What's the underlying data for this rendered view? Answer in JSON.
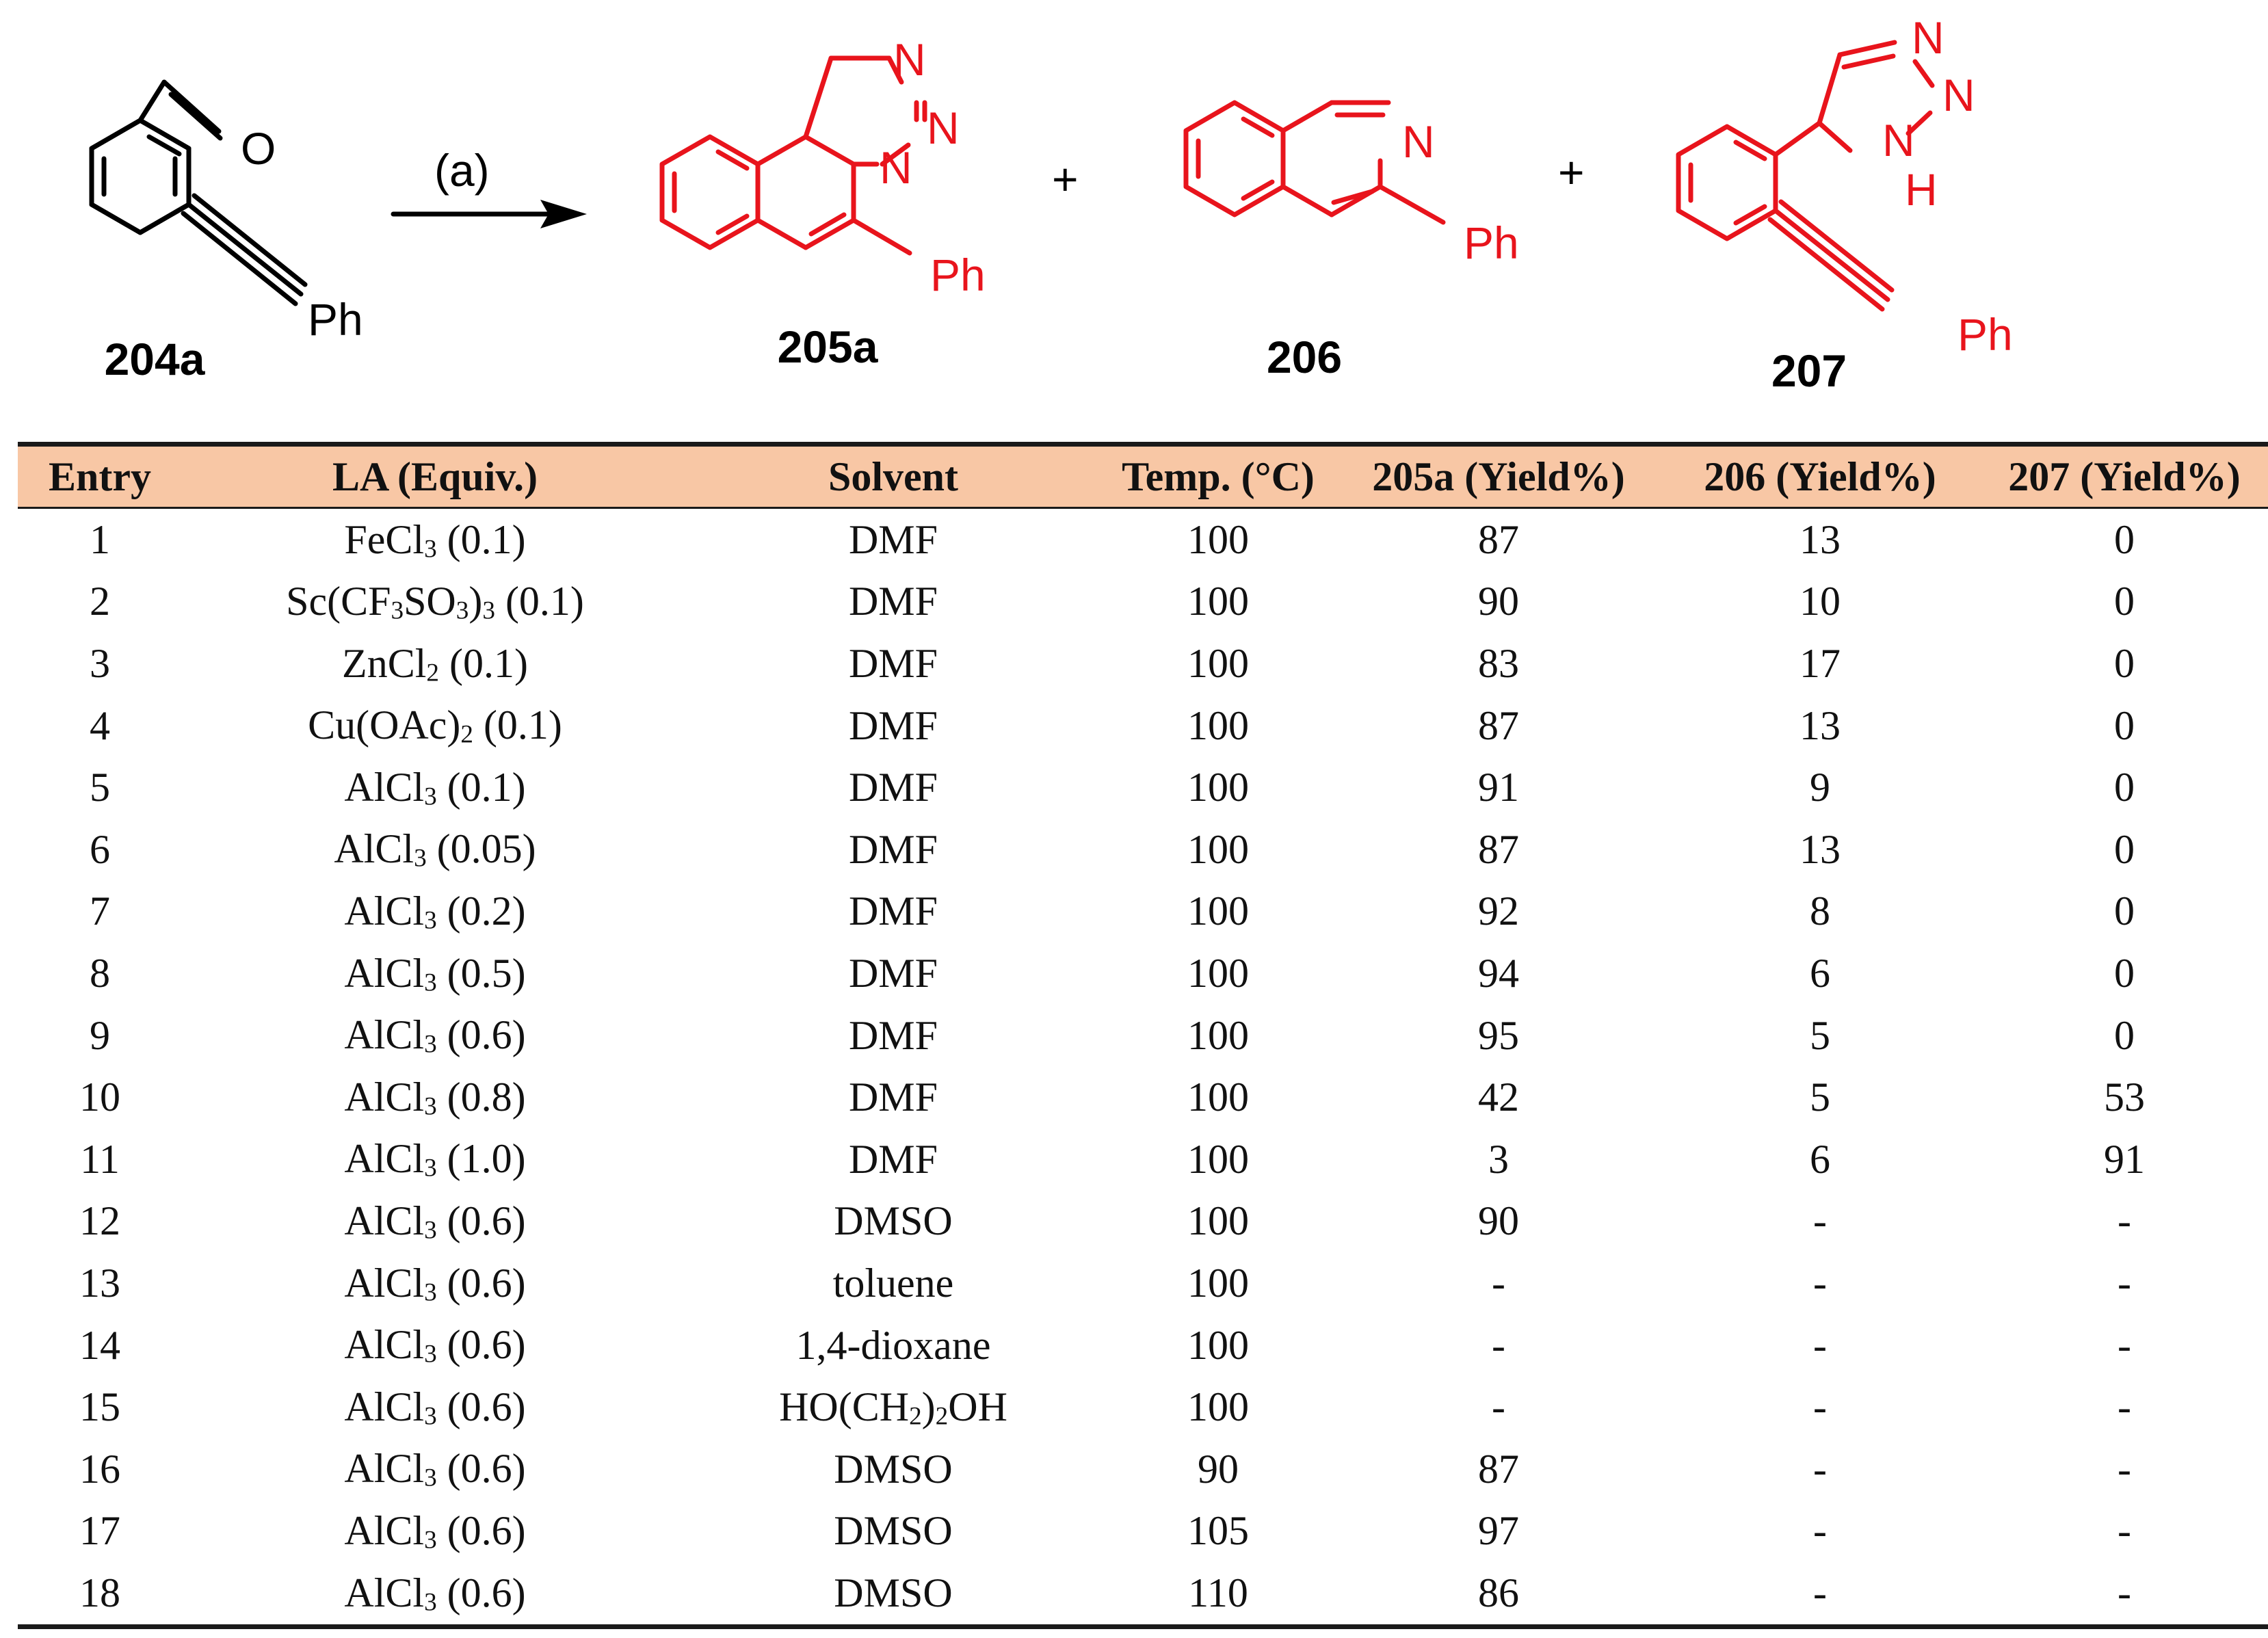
{
  "scheme": {
    "reagent_label": "(a)",
    "plus_sign": "+",
    "compounds": [
      {
        "label": "204a",
        "substituent": "Ph",
        "atoms": [
          "O"
        ]
      },
      {
        "label": "205a",
        "substituent": "Ph",
        "atoms": [
          "N",
          "N",
          "N"
        ]
      },
      {
        "label": "206",
        "substituent": "Ph",
        "atoms": [
          "N"
        ]
      },
      {
        "label": "207",
        "substituent": "Ph",
        "atoms": [
          "N",
          "N",
          "N",
          "H"
        ]
      }
    ],
    "colors": {
      "reactant": "#000000",
      "product": "#e8141c"
    }
  },
  "table": {
    "header_color": "#f8c7a5",
    "headers": [
      "Entry",
      "LA (Equiv.)",
      "Solvent",
      "Temp. (°C)",
      "205a (Yield%)",
      "206 (Yield%)",
      "207 (Yield%)"
    ],
    "rows": [
      {
        "entry": "1",
        "la": "FeCl3 (0.1)",
        "solvent": "DMF",
        "temp": "100",
        "y205a": "87",
        "y206": "13",
        "y207": "0"
      },
      {
        "entry": "2",
        "la": "Sc(CF3SO3)3 (0.1)",
        "solvent": "DMF",
        "temp": "100",
        "y205a": "90",
        "y206": "10",
        "y207": "0"
      },
      {
        "entry": "3",
        "la": "ZnCl2 (0.1)",
        "solvent": "DMF",
        "temp": "100",
        "y205a": "83",
        "y206": "17",
        "y207": "0"
      },
      {
        "entry": "4",
        "la": "Cu(OAc)2 (0.1)",
        "solvent": "DMF",
        "temp": "100",
        "y205a": "87",
        "y206": "13",
        "y207": "0"
      },
      {
        "entry": "5",
        "la": "AlCl3 (0.1)",
        "solvent": "DMF",
        "temp": "100",
        "y205a": "91",
        "y206": "9",
        "y207": "0"
      },
      {
        "entry": "6",
        "la": "AlCl3 (0.05)",
        "solvent": "DMF",
        "temp": "100",
        "y205a": "87",
        "y206": "13",
        "y207": "0"
      },
      {
        "entry": "7",
        "la": "AlCl3 (0.2)",
        "solvent": "DMF",
        "temp": "100",
        "y205a": "92",
        "y206": "8",
        "y207": "0"
      },
      {
        "entry": "8",
        "la": "AlCl3 (0.5)",
        "solvent": "DMF",
        "temp": "100",
        "y205a": "94",
        "y206": "6",
        "y207": "0"
      },
      {
        "entry": "9",
        "la": "AlCl3 (0.6)",
        "solvent": "DMF",
        "temp": "100",
        "y205a": "95",
        "y206": "5",
        "y207": "0"
      },
      {
        "entry": "10",
        "la": "AlCl3 (0.8)",
        "solvent": "DMF",
        "temp": "100",
        "y205a": "42",
        "y206": "5",
        "y207": "53"
      },
      {
        "entry": "11",
        "la": "AlCl3 (1.0)",
        "solvent": "DMF",
        "temp": "100",
        "y205a": "3",
        "y206": "6",
        "y207": "91"
      },
      {
        "entry": "12",
        "la": "AlCl3 (0.6)",
        "solvent": "DMSO",
        "temp": "100",
        "y205a": "90",
        "y206": "-",
        "y207": "-"
      },
      {
        "entry": "13",
        "la": "AlCl3 (0.6)",
        "solvent": "toluene",
        "temp": "100",
        "y205a": "-",
        "y206": "-",
        "y207": "-"
      },
      {
        "entry": "14",
        "la": "AlCl3 (0.6)",
        "solvent": "1,4-dioxane",
        "temp": "100",
        "y205a": "-",
        "y206": "-",
        "y207": "-"
      },
      {
        "entry": "15",
        "la": "AlCl3 (0.6)",
        "solvent": "HO(CH2)2OH",
        "temp": "100",
        "y205a": "-",
        "y206": "-",
        "y207": "-"
      },
      {
        "entry": "16",
        "la": "AlCl3 (0.6)",
        "solvent": "DMSO",
        "temp": "90",
        "y205a": "87",
        "y206": "-",
        "y207": "-"
      },
      {
        "entry": "17",
        "la": "AlCl3 (0.6)",
        "solvent": "DMSO",
        "temp": "105",
        "y205a": "97",
        "y206": "-",
        "y207": "-"
      },
      {
        "entry": "18",
        "la": "AlCl3 (0.6)",
        "solvent": "DMSO",
        "temp": "110",
        "y205a": "86",
        "y206": "-",
        "y207": "-"
      }
    ]
  }
}
